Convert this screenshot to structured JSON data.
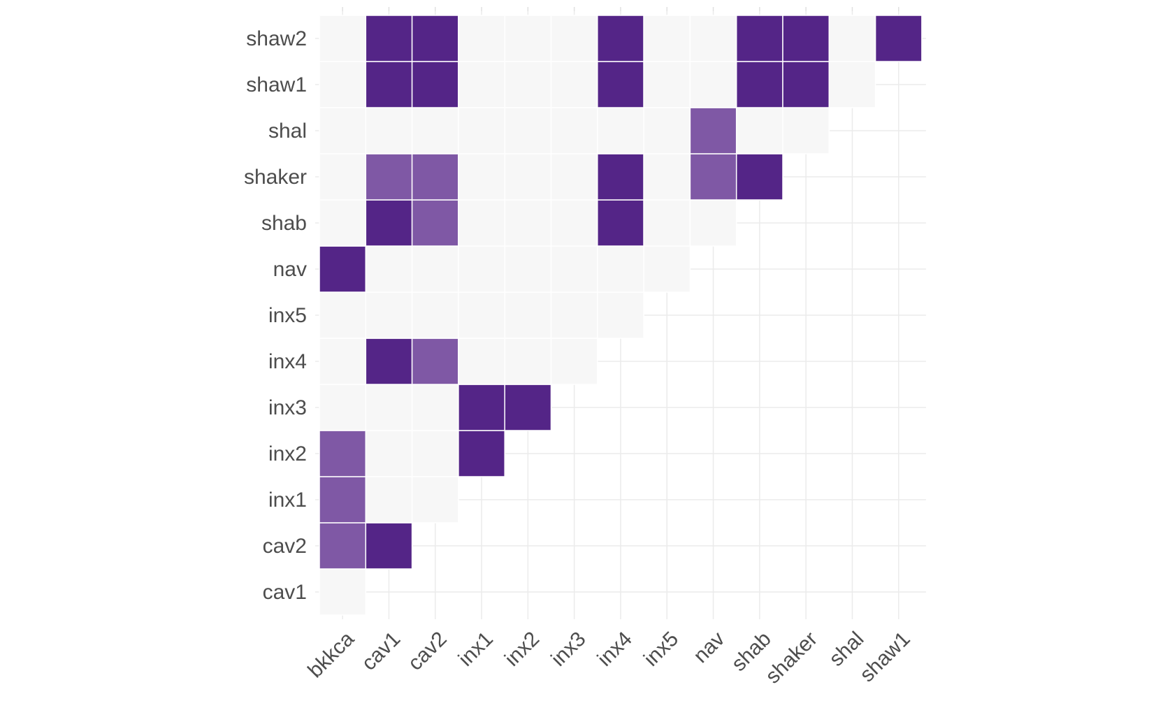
{
  "chart_data": {
    "type": "heatmap",
    "title": "",
    "xlabel": "",
    "ylabel": "",
    "x_categories": [
      "bkkca",
      "cav1",
      "cav2",
      "inx1",
      "inx2",
      "inx3",
      "inx4",
      "inx5",
      "nav",
      "shab",
      "shaker",
      "shal",
      "shaw1"
    ],
    "y_categories": [
      "cav1",
      "cav2",
      "inx1",
      "inx2",
      "inx3",
      "inx4",
      "inx5",
      "nav",
      "shab",
      "shaker",
      "shal",
      "shaw1",
      "shaw2"
    ],
    "levels": {
      "0": "#f7f7f7",
      "1": "#7f58a5",
      "2": "#542587"
    },
    "grid": true,
    "legend": "none",
    "cells": [
      [
        "cav1",
        [
          "0"
        ]
      ],
      [
        "cav2",
        [
          "1",
          "2"
        ]
      ],
      [
        "inx1",
        [
          "1",
          "0",
          "0"
        ]
      ],
      [
        "inx2",
        [
          "1",
          "0",
          "0",
          "2"
        ]
      ],
      [
        "inx3",
        [
          "0",
          "0",
          "0",
          "2",
          "2"
        ]
      ],
      [
        "inx4",
        [
          "0",
          "2",
          "1",
          "0",
          "0",
          "0"
        ]
      ],
      [
        "inx5",
        [
          "0",
          "0",
          "0",
          "0",
          "0",
          "0",
          "0"
        ]
      ],
      [
        "nav",
        [
          "2",
          "0",
          "0",
          "0",
          "0",
          "0",
          "0",
          "0"
        ]
      ],
      [
        "shab",
        [
          "0",
          "2",
          "1",
          "0",
          "0",
          "0",
          "2",
          "0",
          "0"
        ]
      ],
      [
        "shaker",
        [
          "0",
          "1",
          "1",
          "0",
          "0",
          "0",
          "2",
          "0",
          "1",
          "2"
        ]
      ],
      [
        "shal",
        [
          "0",
          "0",
          "0",
          "0",
          "0",
          "0",
          "0",
          "0",
          "1",
          "0",
          "0"
        ]
      ],
      [
        "shaw1",
        [
          "0",
          "2",
          "2",
          "0",
          "0",
          "0",
          "2",
          "0",
          "0",
          "2",
          "2",
          "0"
        ]
      ],
      [
        "shaw2",
        [
          "0",
          "2",
          "2",
          "0",
          "0",
          "0",
          "2",
          "0",
          "0",
          "2",
          "2",
          "0",
          "2"
        ]
      ]
    ]
  }
}
